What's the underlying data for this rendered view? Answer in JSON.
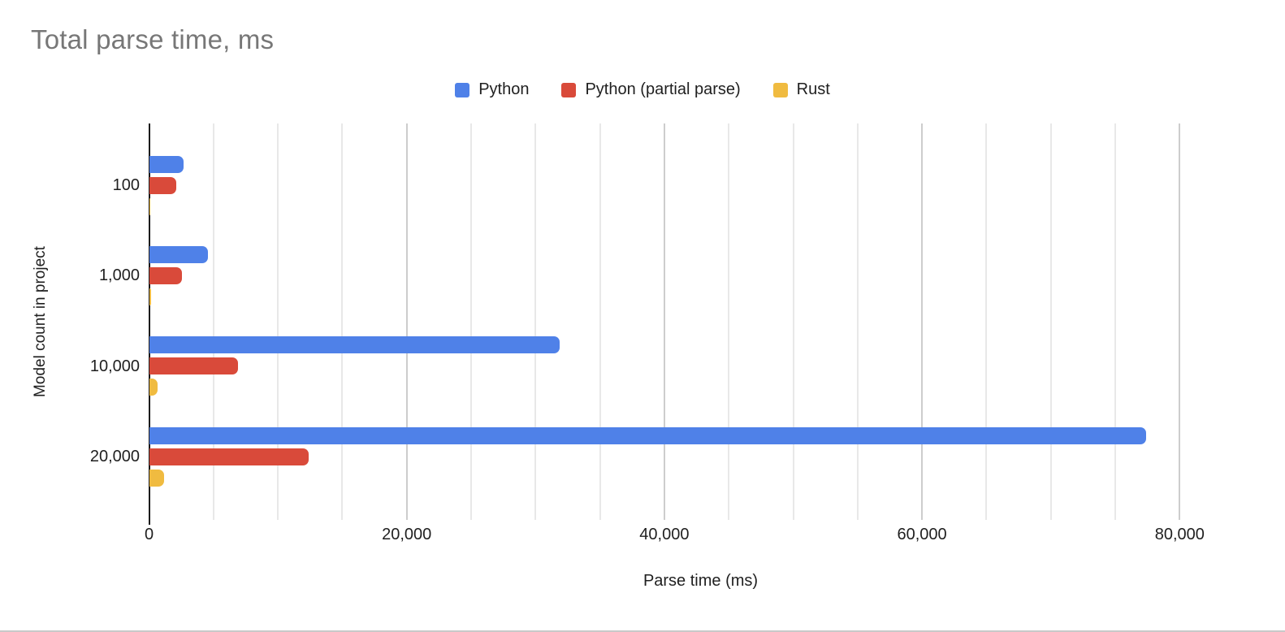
{
  "chart_data": {
    "type": "bar",
    "orientation": "horizontal",
    "title": "Total parse time, ms",
    "xlabel": "Parse time (ms)",
    "ylabel": "Model count in project",
    "categories": [
      "100",
      "1,000",
      "10,000",
      "20,000"
    ],
    "series": [
      {
        "name": "Python",
        "color": "#4F81E8",
        "values": [
          2700,
          4600,
          31900,
          77400
        ]
      },
      {
        "name": "Python (partial parse)",
        "color": "#D94A3A",
        "values": [
          2100,
          2550,
          6900,
          12400
        ]
      },
      {
        "name": "Rust",
        "color": "#F0BB40",
        "values": [
          90,
          140,
          680,
          1150
        ]
      }
    ],
    "x_ticks": [
      {
        "value": 0,
        "label": "0"
      },
      {
        "value": 20000,
        "label": "20,000"
      },
      {
        "value": 40000,
        "label": "40,000"
      },
      {
        "value": 60000,
        "label": "60,000"
      },
      {
        "value": 80000,
        "label": "80,000"
      }
    ],
    "xlim": [
      0,
      85000
    ],
    "minor_grid_step": 5000,
    "major_grid_step": 20000,
    "grid": true,
    "legend_position": "top",
    "colors": {
      "title_text": "#777777",
      "axis_text": "#1f1f1f",
      "baseline": "#1b1b1b",
      "major_gridline": "#cdcdcd",
      "minor_gridline": "#e8e8e8"
    }
  }
}
